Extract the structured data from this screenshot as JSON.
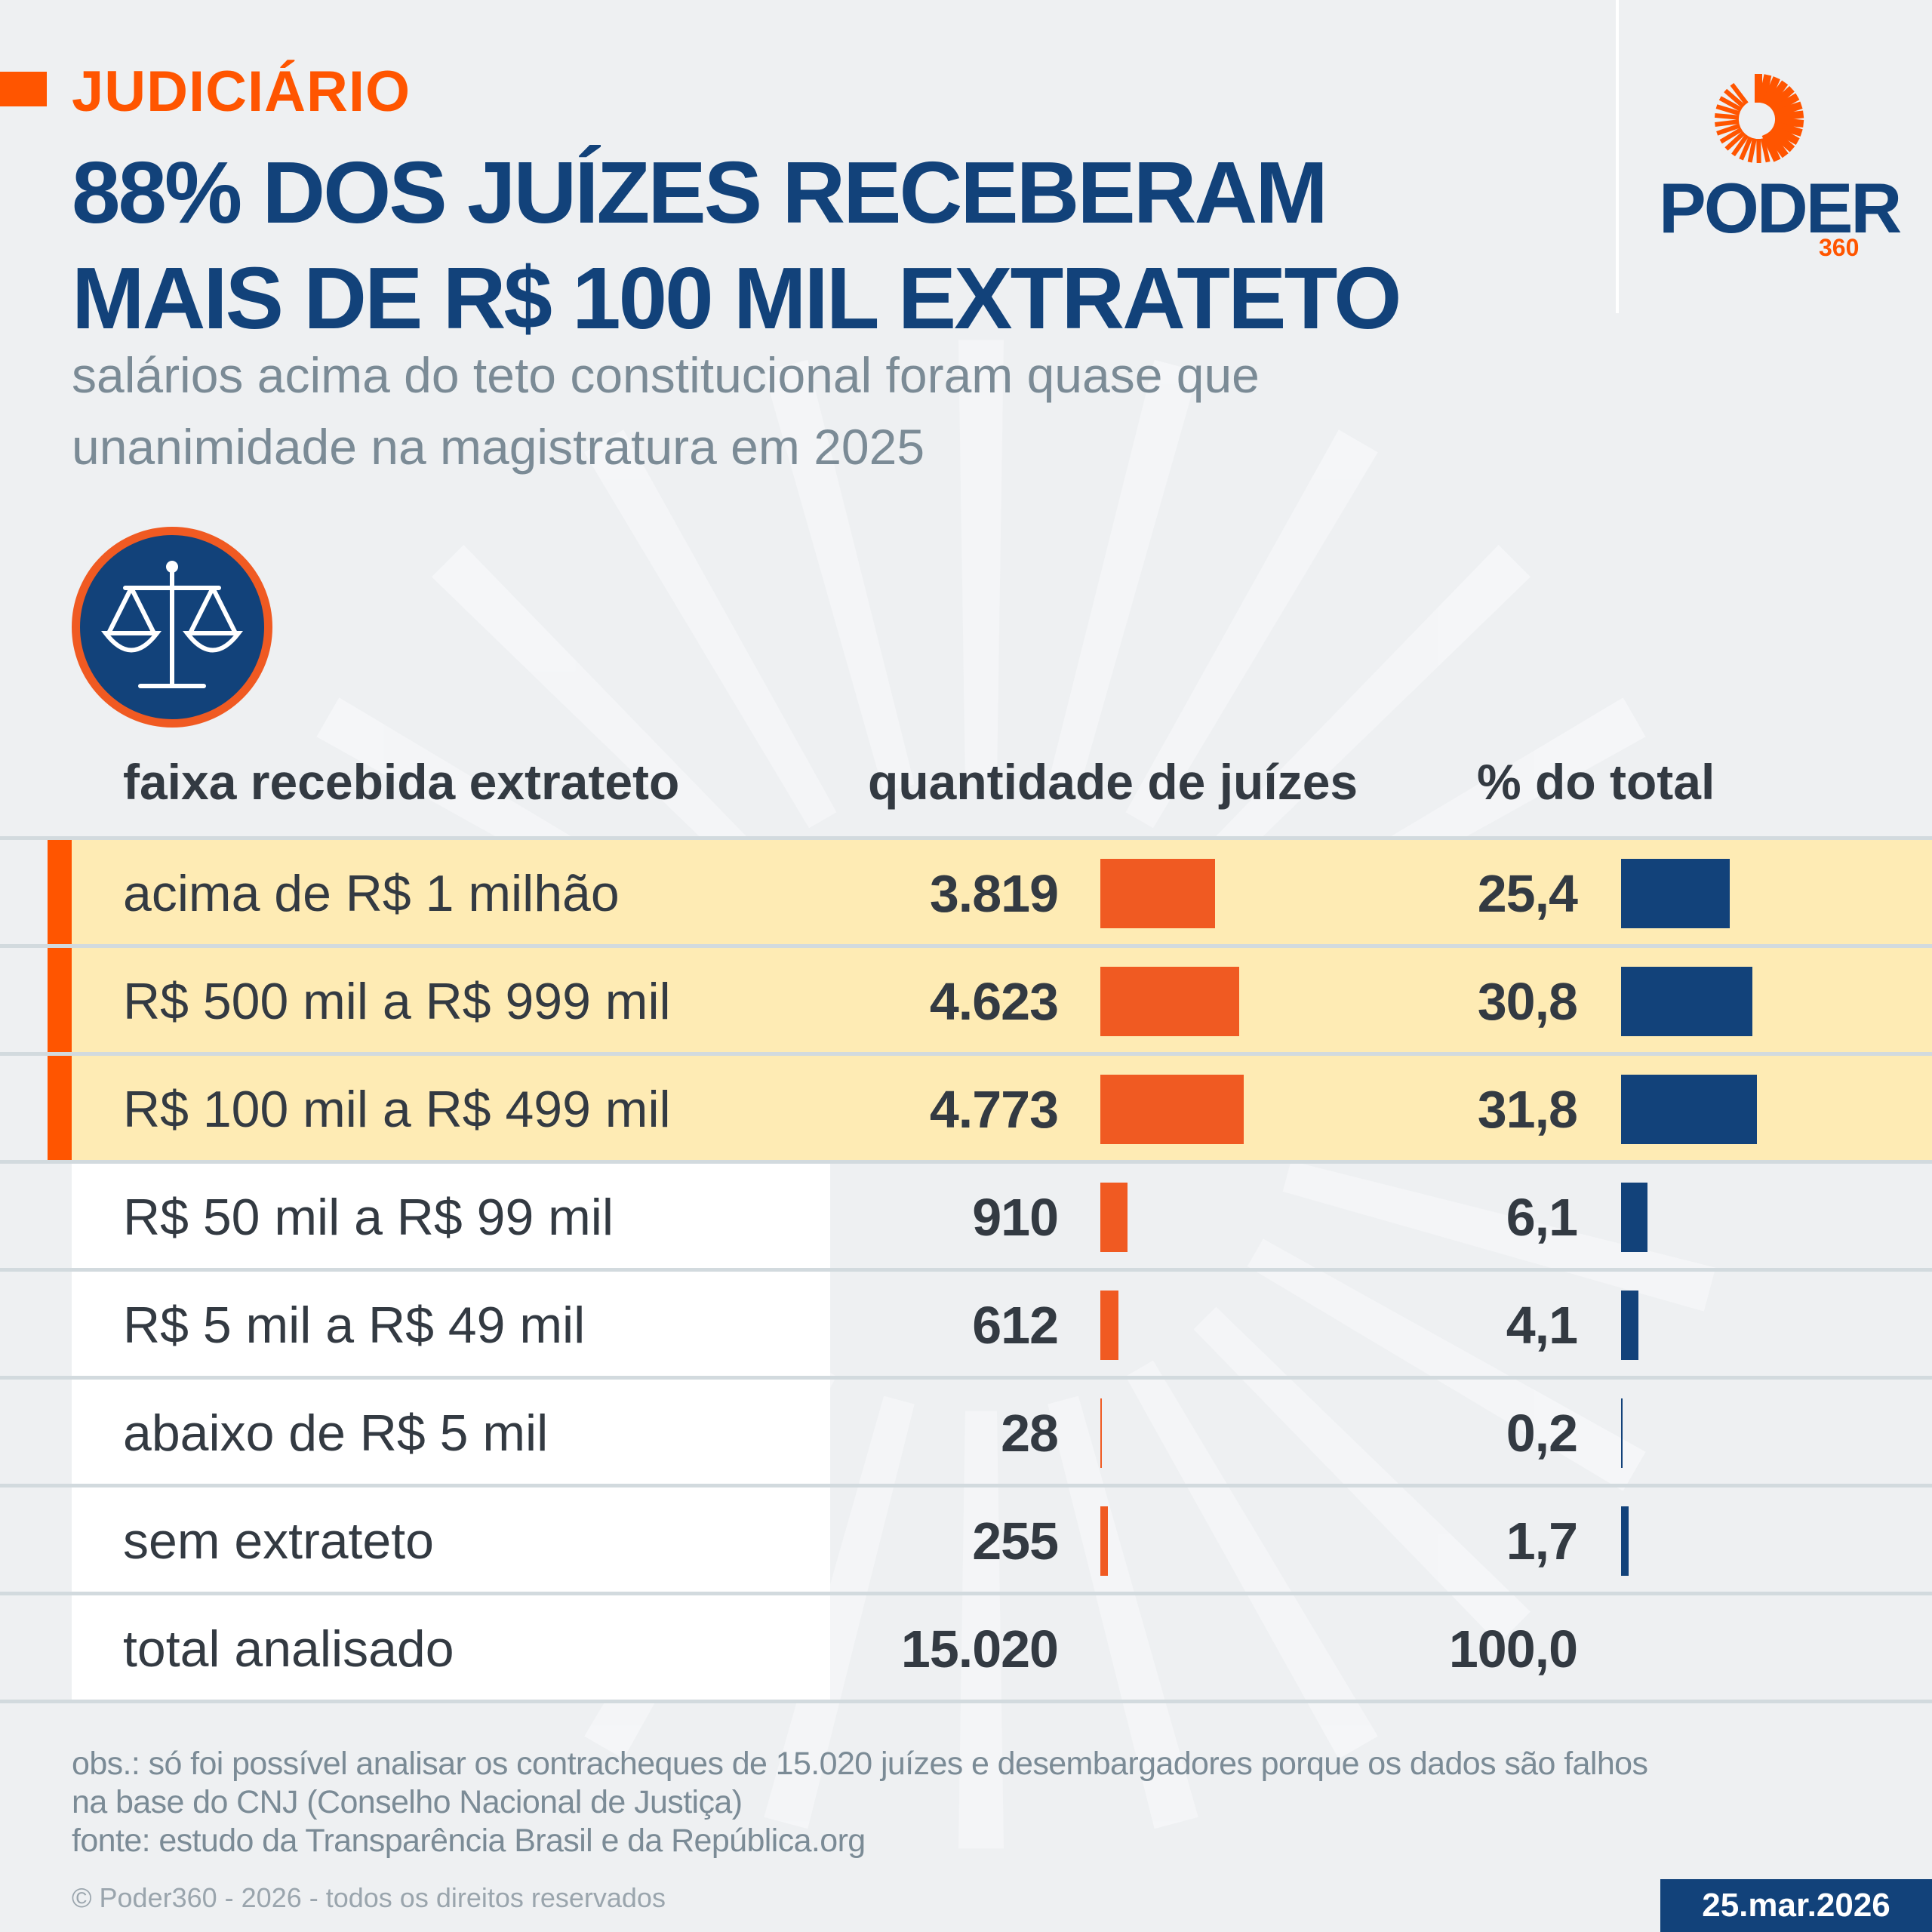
{
  "kicker": "JUDICIÁRIO",
  "title_lines": [
    "88% DOS JUÍZES RECEBERAM",
    "MAIS DE R$ 100 MIL EXTRATETO"
  ],
  "subtitle_lines": [
    "salários acima do teto constitucional foram quase que",
    "unanimidade na magistratura em 2025"
  ],
  "logo": {
    "name": "PODER",
    "sub": "360"
  },
  "icon": "scales-of-justice-icon",
  "colors": {
    "accent": "#ff5500",
    "navy": "#12427a",
    "highlight": "#feebb4",
    "orange_bar": "#f05a22"
  },
  "chart_data": {
    "type": "table",
    "columns": [
      "faixa recebida extrateto",
      "quantidade de juízes",
      "% do total"
    ],
    "rows": [
      {
        "label": "acima de R$ 1 milhão",
        "count": 3819,
        "count_text": "3.819",
        "pct": 25.4,
        "pct_text": "25,4",
        "highlight": true
      },
      {
        "label": "R$ 500 mil a R$ 999 mil",
        "count": 4623,
        "count_text": "4.623",
        "pct": 30.8,
        "pct_text": "30,8",
        "highlight": true
      },
      {
        "label": "R$ 100 mil a R$ 499 mil",
        "count": 4773,
        "count_text": "4.773",
        "pct": 31.8,
        "pct_text": "31,8",
        "highlight": true
      },
      {
        "label": "R$ 50 mil a R$ 99 mil",
        "count": 910,
        "count_text": "910",
        "pct": 6.1,
        "pct_text": "6,1",
        "highlight": false
      },
      {
        "label": "R$ 5 mil a R$ 49 mil",
        "count": 612,
        "count_text": "612",
        "pct": 4.1,
        "pct_text": "4,1",
        "highlight": false
      },
      {
        "label": "abaixo de R$ 5 mil",
        "count": 28,
        "count_text": "28",
        "pct": 0.2,
        "pct_text": "0,2",
        "highlight": false
      },
      {
        "label": "sem extrateto",
        "count": 255,
        "count_text": "255",
        "pct": 1.7,
        "pct_text": "1,7",
        "highlight": false
      }
    ],
    "total": {
      "label": "total analisado",
      "count_text": "15.020",
      "pct_text": "100,0"
    }
  },
  "footer": {
    "obs_lines": [
      "obs.: só foi possível analisar os contracheques de 15.020 juízes e desembargadores porque os dados são falhos",
      "na base do CNJ (Conselho Nacional de Justiça)"
    ],
    "source": "fonte: estudo da Transparência Brasil e da República.org",
    "copyright": "© Poder360 - 2026 - todos os direitos reservados",
    "date": "25.mar.2026"
  }
}
